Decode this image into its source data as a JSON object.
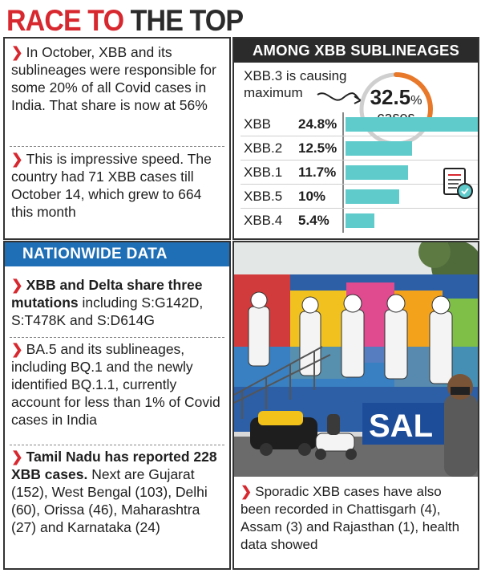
{
  "title": {
    "part1": "RACE TO",
    "part2": "THE TOP"
  },
  "left_top": {
    "bullets": [
      "In October, XBB and its sublineages were responsible for some 20% of all Covid cases in India. That share is now at 56%",
      "This is impressive speed. The country had 71 XBB cases till October 14, which grew to 664 this month"
    ]
  },
  "nationwide": {
    "header": "NATIONWIDE DATA",
    "bullet1_bold": "XBB and Delta share three mutations",
    "bullet1_rest": " including S:G142D, S:T478K and S:D614G",
    "bullet2": "BA.5 and its sublineages, including BQ.1 and the newly identified BQ.1.1, currently account for less than 1% of Covid cases in India",
    "bullet3_bold": "Tamil Nadu has reported 228 XBB cases.",
    "bullet3_rest": " Next are Gujarat (152), West Bengal (103), Delhi (60), Orissa (46), Maharashtra (27) and Karnataka (24)"
  },
  "among": {
    "header": "AMONG XBB SUBLINEAGES",
    "causing_line1": "XBB.3 is causing",
    "causing_line2": "maximum",
    "callout_value": "32.5",
    "callout_unit": "%",
    "callout_label": "cases",
    "accent_color": "#e8782a"
  },
  "chart_data": {
    "type": "bar",
    "categories": [
      "XBB",
      "XBB.2",
      "XBB.1",
      "XBB.5",
      "XBB.4"
    ],
    "values": [
      24.8,
      12.5,
      11.7,
      10,
      5.4
    ],
    "value_labels": [
      "24.8%",
      "12.5%",
      "11.7%",
      "10%",
      "5.4%"
    ],
    "title": "",
    "xlabel": "",
    "ylabel": "",
    "bar_color": "#5fcbcb"
  },
  "photo": {
    "sign_text": "SAL",
    "caption": "Sporadic XBB cases have also been recorded in Chattisgarh (4), Assam (3) and Rajasthan (1), health data showed"
  }
}
